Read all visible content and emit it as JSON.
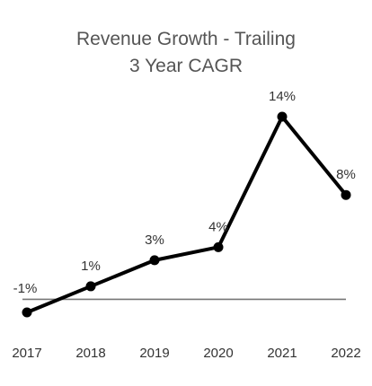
{
  "chart_data": {
    "type": "line",
    "title": [
      "Revenue Growth - Trailing",
      "3 Year CAGR"
    ],
    "xlabel": "",
    "ylabel": "",
    "categories": [
      "2017",
      "2018",
      "2019",
      "2020",
      "2021",
      "2022"
    ],
    "series": [
      {
        "values": [
          -1,
          1,
          3,
          4,
          14,
          8
        ],
        "data_labels": [
          "-1%",
          "1%",
          "3%",
          "4%",
          "14%",
          "8%"
        ],
        "color": "#000000"
      }
    ],
    "ylim": [
      -1,
      14
    ],
    "zero_line": true,
    "zero_line_color": "#777777",
    "grid": false,
    "legend": "none",
    "y_axis_visible": false
  }
}
